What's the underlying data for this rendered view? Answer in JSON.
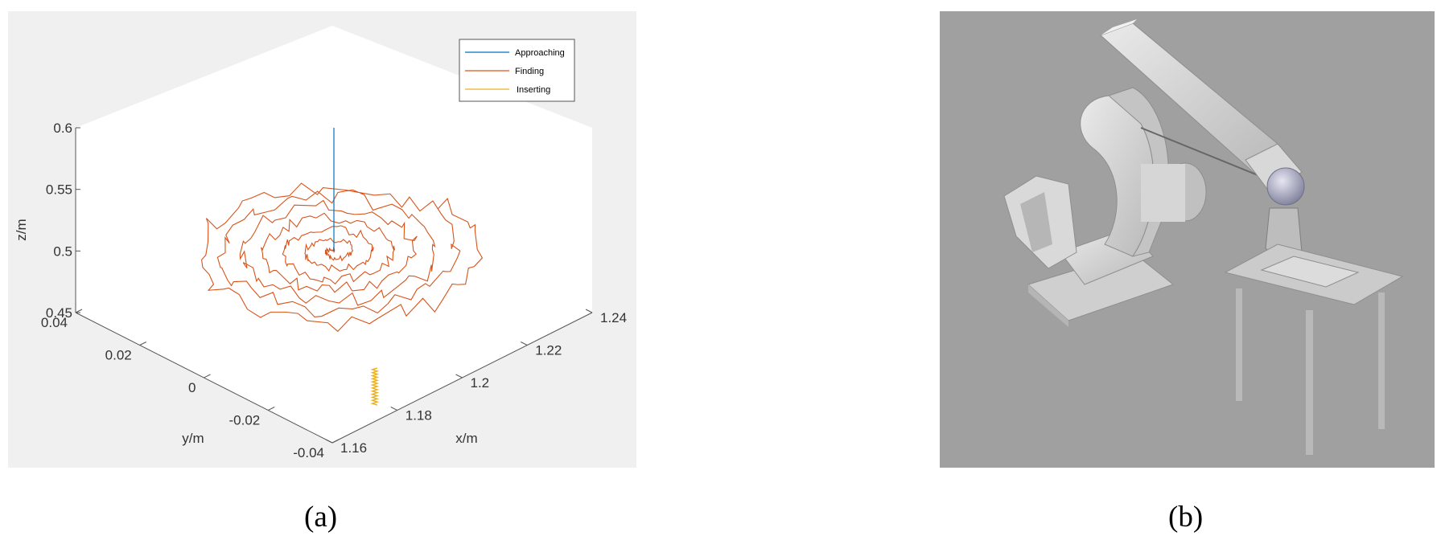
{
  "chart_data": {
    "type": "line",
    "projection": "3d",
    "caption": "(a)",
    "xlabel": "x/m",
    "ylabel": "y/m",
    "zlabel": "z/m",
    "xlim": [
      1.16,
      1.24
    ],
    "ylim": [
      -0.04,
      0.04
    ],
    "zlim": [
      0.45,
      0.6
    ],
    "x_ticks": [
      "1.16",
      "1.18",
      "1.2",
      "1.22",
      "1.24"
    ],
    "y_ticks": [
      "-0.04",
      "-0.02",
      "0",
      "0.02",
      "0.04"
    ],
    "z_ticks": [
      "0.45",
      "0.5",
      "0.55",
      "0.6"
    ],
    "legend_position": "top-right",
    "series": [
      {
        "name": "Approaching",
        "color": "#0072bd",
        "points": [
          [
            1.2,
            0.0,
            0.6
          ],
          [
            1.2,
            0.0,
            0.5
          ]
        ]
      },
      {
        "name": "Finding",
        "color": "#d95319",
        "spiral": {
          "center": [
            1.2,
            0.0,
            0.5
          ],
          "max_radius": 0.032,
          "turns": 7,
          "noise": 0.0025
        }
      },
      {
        "name": "Inserting",
        "color": "#edb120",
        "points": [
          [
            1.18,
            -0.033,
            0.475
          ],
          [
            1.18,
            -0.033,
            0.445
          ]
        ]
      }
    ]
  },
  "figure_b": {
    "caption": "(b)",
    "subject": "robot-arm-3d-render"
  }
}
